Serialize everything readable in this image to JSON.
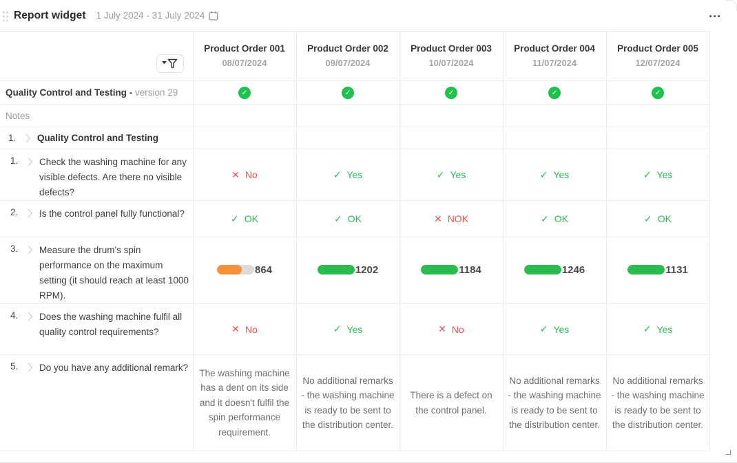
{
  "widget": {
    "title": "Report widget",
    "date_range": "1 July 2024 - 31 July 2024"
  },
  "icons": {
    "check-icon": "✓",
    "cross-icon": "✕"
  },
  "colors": {
    "good_green": "#2eb758",
    "bad_red": "#ee5252",
    "status_circle_green": "#1fc24c",
    "bar_orange": "#f6923d",
    "bar_green": "#2cbb4e",
    "bar_track_gray": "#dcdcdc"
  },
  "table": {
    "columns": [
      {
        "name": "Product Order 001",
        "date": "08/07/2024"
      },
      {
        "name": "Product Order 002",
        "date": "09/07/2024"
      },
      {
        "name": "Product Order 003",
        "date": "10/07/2024"
      },
      {
        "name": "Product Order 004",
        "date": "11/07/2024"
      },
      {
        "name": "Product Order 005",
        "date": "12/07/2024"
      }
    ],
    "version_row": {
      "title": "Quality Control and Testing -",
      "version": "version 29"
    },
    "notes_label": "Notes",
    "section": {
      "number": "1.",
      "title": "Quality Control and Testing"
    },
    "questions": [
      {
        "number": "1.",
        "text": "Check the washing machine for any visible defects. Are there no visible defects?",
        "answers": [
          {
            "status": "bad",
            "icon": "cross-icon",
            "label": "No"
          },
          {
            "status": "good",
            "icon": "check-icon",
            "label": "Yes"
          },
          {
            "status": "good",
            "icon": "check-icon",
            "label": "Yes"
          },
          {
            "status": "good",
            "icon": "check-icon",
            "label": "Yes"
          },
          {
            "status": "good",
            "icon": "check-icon",
            "label": "Yes"
          }
        ]
      },
      {
        "number": "2.",
        "text": "Is the control panel fully functional?",
        "answers": [
          {
            "status": "good",
            "icon": "check-icon",
            "label": "OK"
          },
          {
            "status": "good",
            "icon": "check-icon",
            "label": "OK"
          },
          {
            "status": "bad",
            "icon": "cross-icon",
            "label": "NOK"
          },
          {
            "status": "good",
            "icon": "check-icon",
            "label": "OK"
          },
          {
            "status": "good",
            "icon": "check-icon",
            "label": "OK"
          }
        ]
      },
      {
        "number": "3.",
        "text": "Measure the drum's spin performance on the maximum setting (it should reach at least 1000 RPM).",
        "bars": [
          {
            "value": "864",
            "status": "warn",
            "fill_percent": 66
          },
          {
            "value": "1202",
            "status": "ok",
            "fill_percent": 100
          },
          {
            "value": "1184",
            "status": "ok",
            "fill_percent": 100
          },
          {
            "value": "1246",
            "status": "ok",
            "fill_percent": 100
          },
          {
            "value": "1131",
            "status": "ok",
            "fill_percent": 100
          }
        ]
      },
      {
        "number": "4.",
        "text": "Does the washing machine fulfil all quality control requirements?",
        "answers": [
          {
            "status": "bad",
            "icon": "cross-icon",
            "label": "No"
          },
          {
            "status": "good",
            "icon": "check-icon",
            "label": "Yes"
          },
          {
            "status": "bad",
            "icon": "cross-icon",
            "label": "No"
          },
          {
            "status": "good",
            "icon": "check-icon",
            "label": "Yes"
          },
          {
            "status": "good",
            "icon": "check-icon",
            "label": "Yes"
          }
        ]
      },
      {
        "number": "5.",
        "text": "Do you have any additional remark?",
        "remarks": [
          "The washing machine has a dent on its side and it doesn't fulfil the spin performance requirement.",
          "No additional remarks - the washing machine is ready to be sent to the distribution center.",
          "There is a defect on the control panel.",
          "No additional remarks - the washing machine is ready to be sent to the distribution center.",
          "No additional remarks - the washing machine is ready to be sent to the distribution center."
        ]
      }
    ]
  }
}
